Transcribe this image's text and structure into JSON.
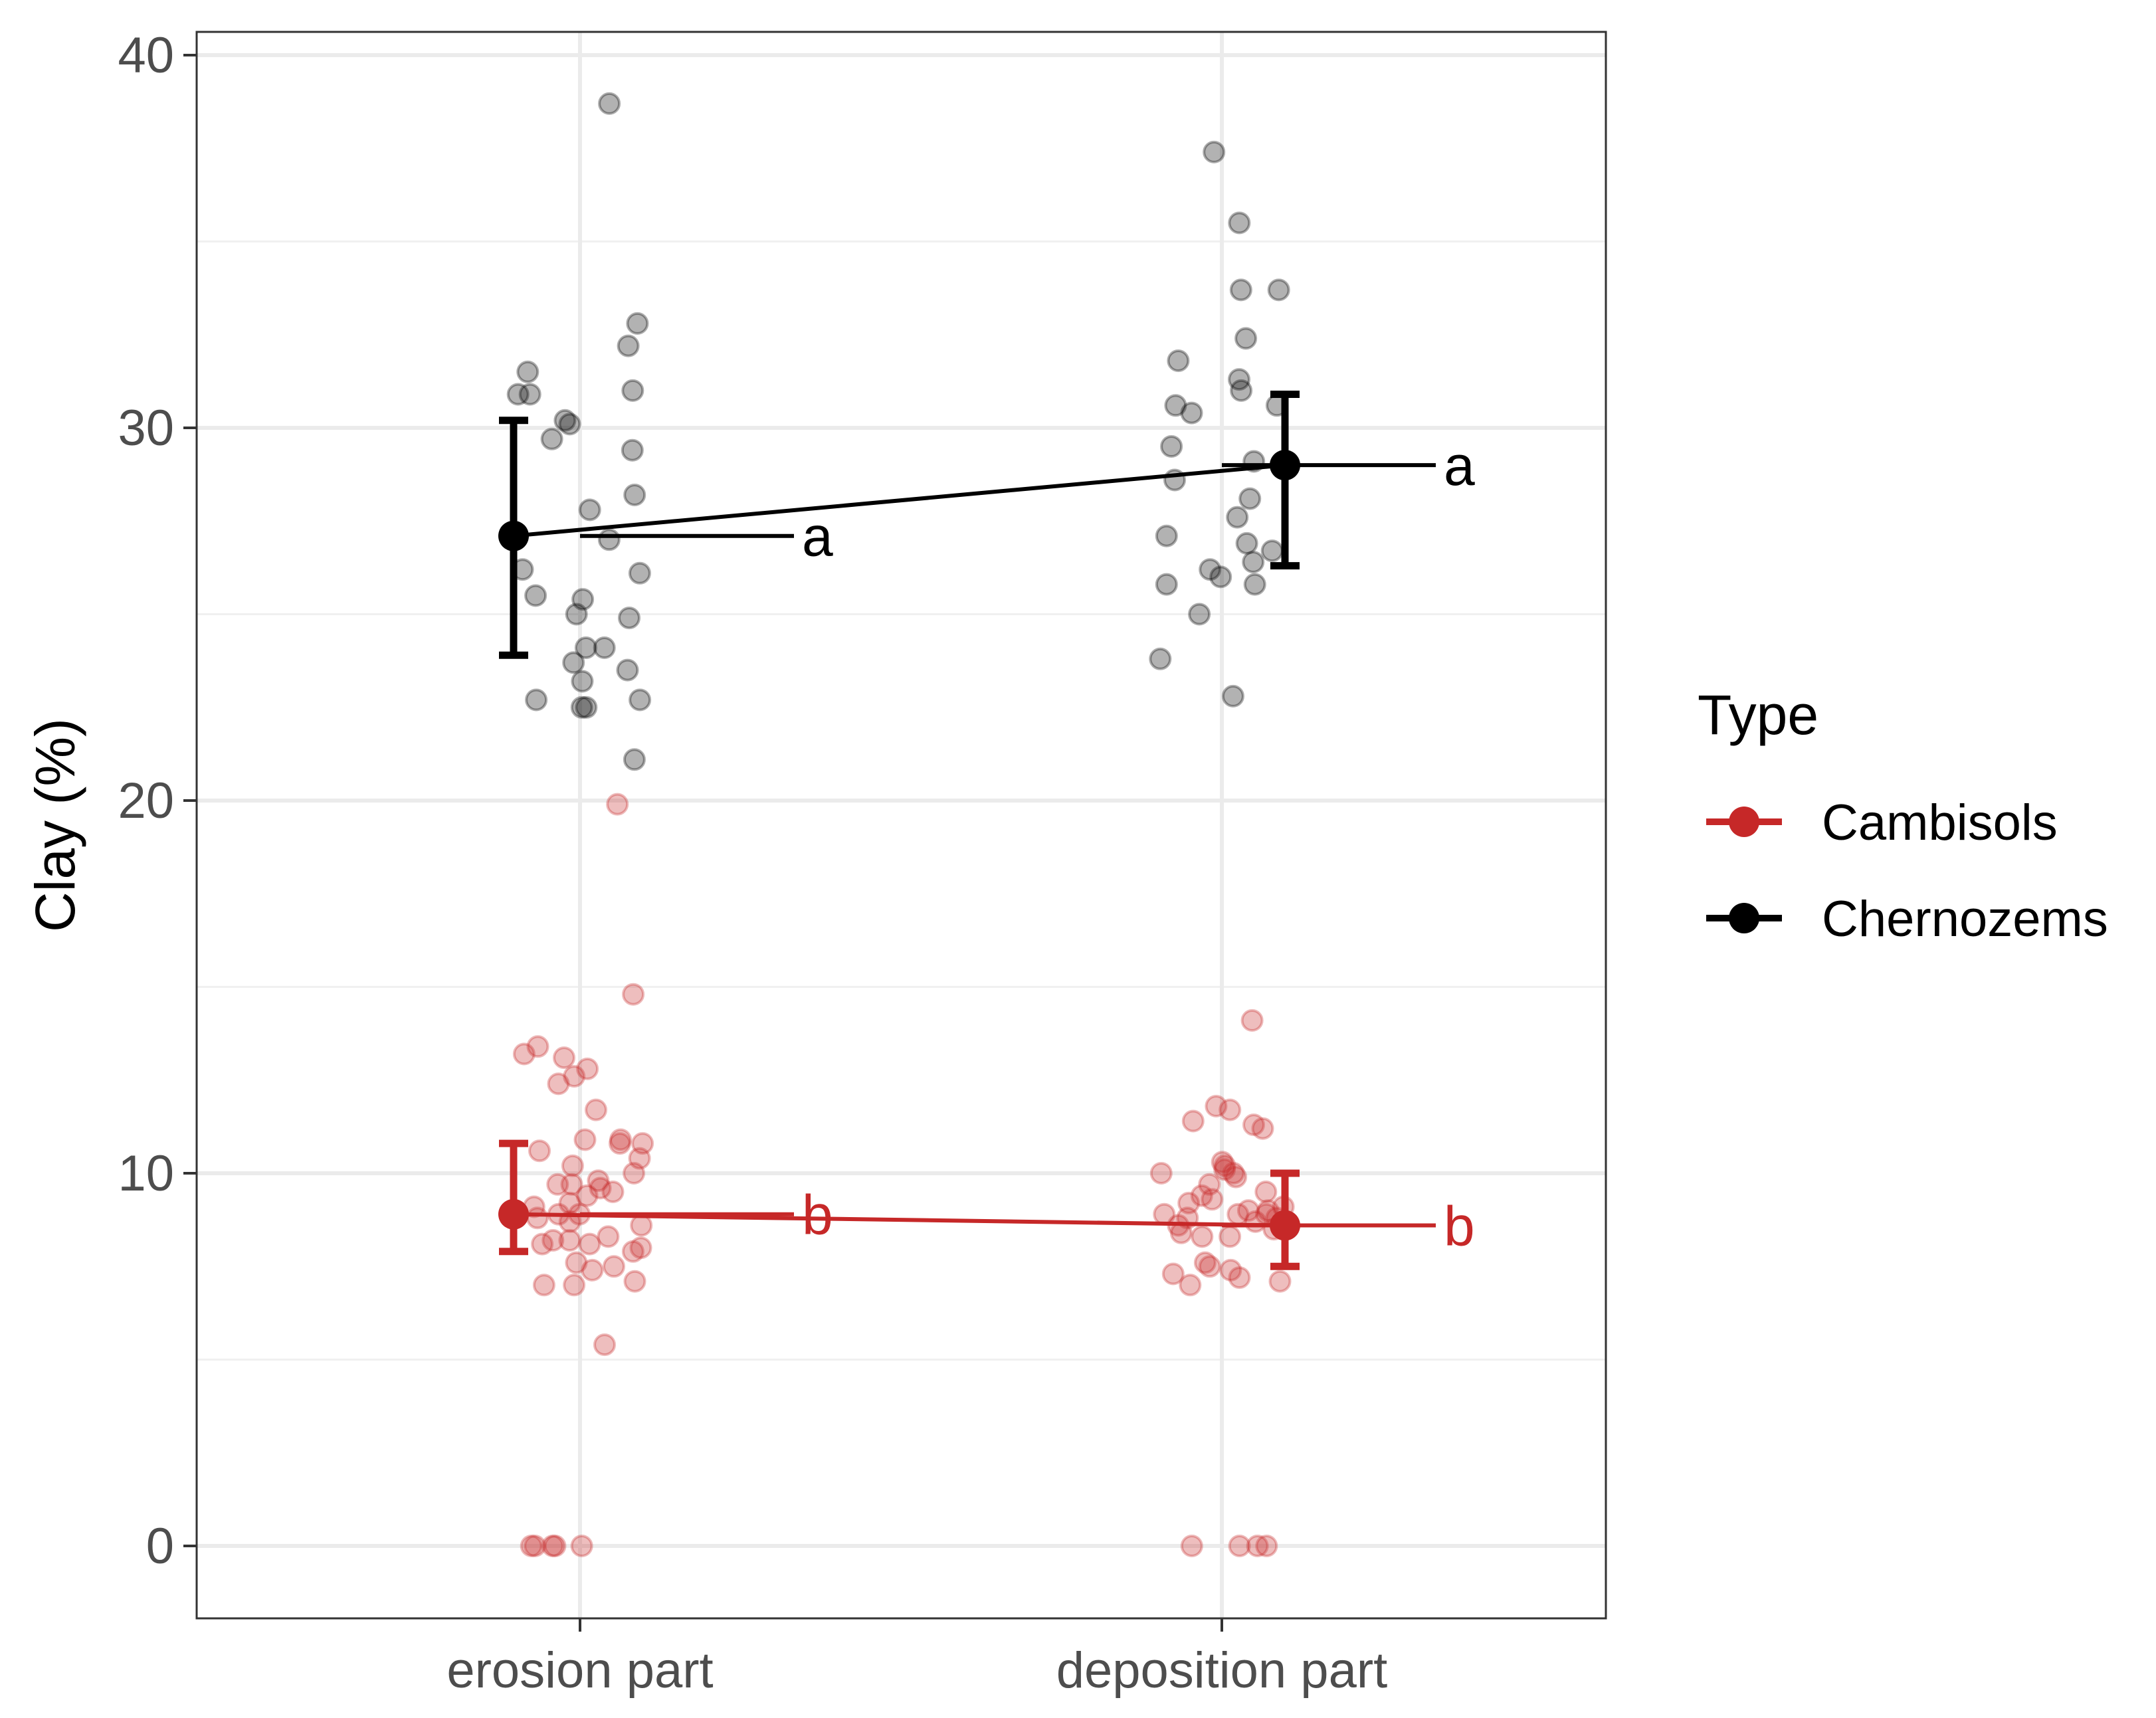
{
  "chart_data": {
    "type": "scatter",
    "ylabel": "Clay (%)",
    "xlabel": "",
    "categories": [
      "erosion part",
      "deposition part"
    ],
    "ylim": [
      -1,
      41.5
    ],
    "y_ticks": [
      0,
      10,
      20,
      30,
      40
    ],
    "grid": true,
    "legend": {
      "title": "Type",
      "position": "right"
    },
    "series": [
      {
        "name": "Cambisols",
        "color": "#C62828",
        "means": [
          8.9,
          8.6
        ],
        "error_bars": [
          [
            7.9,
            10.8
          ],
          [
            7.5,
            10.0
          ]
        ],
        "letters": [
          "b",
          "b"
        ],
        "points": [
          [
            14.8,
            13.2,
            12.8,
            13.1,
            12.6,
            11.7,
            13.4,
            12.4,
            10.9,
            10.4,
            10.9,
            10.6,
            10.8,
            10.8,
            10.2,
            10.0,
            9.7,
            9.8,
            9.7,
            9.5,
            9.4,
            9.6,
            9.2,
            9.1,
            8.9,
            8.9,
            8.9,
            8.8,
            8.7,
            8.6,
            8.3,
            8.2,
            8.2,
            8.1,
            8.1,
            8.0,
            7.9,
            7.6,
            7.5,
            7.4,
            7.1,
            7.0,
            7.0,
            5.4,
            19.9,
            0,
            0,
            0,
            0,
            0
          ],
          [
            14.1,
            11.7,
            11.8,
            11.4,
            11.2,
            11.3,
            10.3,
            10.2,
            10.1,
            10.0,
            10.0,
            9.9,
            9.7,
            9.5,
            9.4,
            9.3,
            9.2,
            9.1,
            9.0,
            9.0,
            8.9,
            8.9,
            8.9,
            8.8,
            8.8,
            8.7,
            8.6,
            8.5,
            8.4,
            8.3,
            8.3,
            7.6,
            7.5,
            7.4,
            7.3,
            7.2,
            7.1,
            7.0,
            0,
            0,
            0,
            0
          ]
        ]
      },
      {
        "name": "Chernozems",
        "color": "#000000",
        "means": [
          27.1,
          29.0
        ],
        "error_bars": [
          [
            23.9,
            30.2
          ],
          [
            26.3,
            30.9
          ]
        ],
        "letters": [
          "a",
          "a"
        ],
        "points": [
          [
            38.7,
            32.8,
            32.2,
            31.5,
            31.0,
            30.9,
            30.9,
            30.2,
            30.1,
            29.7,
            29.4,
            28.2,
            27.8,
            27.0,
            26.2,
            26.1,
            25.5,
            25.4,
            25.0,
            24.9,
            24.1,
            24.1,
            23.7,
            23.5,
            23.2,
            22.7,
            22.7,
            22.5,
            22.5,
            21.1
          ],
          [
            37.4,
            35.5,
            33.7,
            33.7,
            32.4,
            31.8,
            31.3,
            31.0,
            30.6,
            30.6,
            30.4,
            29.5,
            29.1,
            28.6,
            28.1,
            27.6,
            27.1,
            26.9,
            26.7,
            26.4,
            26.2,
            26.0,
            25.8,
            25.8,
            25.0,
            23.8,
            22.8
          ]
        ]
      }
    ]
  }
}
